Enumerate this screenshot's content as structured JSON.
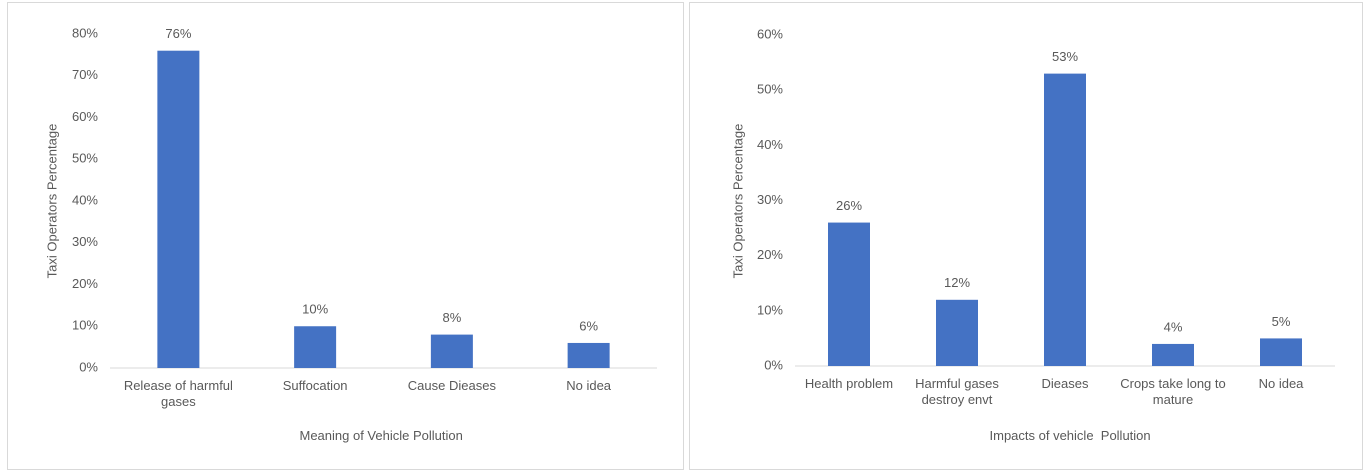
{
  "chart_data": [
    {
      "type": "bar",
      "x_label": "Meaning of Vehicle Pollution",
      "y_label": "Taxi Operators Percentage",
      "categories": [
        "Release of harmful gases",
        "Suffocation",
        "Cause Dieases",
        "No idea"
      ],
      "values": [
        76,
        10,
        8,
        6
      ],
      "value_labels": [
        "76%",
        "10%",
        "8%",
        "6%"
      ],
      "color": "#4472c4",
      "ylim": [
        0,
        80
      ],
      "yticks": [
        {
          "value": 0,
          "label": "0%"
        },
        {
          "value": 10,
          "label": "10%"
        },
        {
          "value": 20,
          "label": "20%"
        },
        {
          "value": 30,
          "label": "30%"
        },
        {
          "value": 40,
          "label": "40%"
        },
        {
          "value": 50,
          "label": "50%"
        },
        {
          "value": 60,
          "label": "60%"
        },
        {
          "value": 70,
          "label": "70%"
        },
        {
          "value": 80,
          "label": "80%"
        }
      ],
      "grid": false
    },
    {
      "type": "bar",
      "x_label": "Impacts of vehicle  Pollution",
      "y_label": "Taxi Operators Percentage",
      "categories": [
        "Health problem",
        "Harmful gases destroy envt",
        "Dieases",
        "Crops take long to mature",
        "No idea"
      ],
      "values": [
        26,
        12,
        53,
        4,
        5
      ],
      "value_labels": [
        "26%",
        "12%",
        "53%",
        "4%",
        "5%"
      ],
      "color": "#4472c4",
      "ylim": [
        0,
        60
      ],
      "yticks": [
        {
          "value": 0,
          "label": "0%"
        },
        {
          "value": 10,
          "label": "10%"
        },
        {
          "value": 20,
          "label": "20%"
        },
        {
          "value": 30,
          "label": "30%"
        },
        {
          "value": 40,
          "label": "40%"
        },
        {
          "value": 50,
          "label": "50%"
        },
        {
          "value": 60,
          "label": "60%"
        }
      ],
      "grid": false
    }
  ]
}
